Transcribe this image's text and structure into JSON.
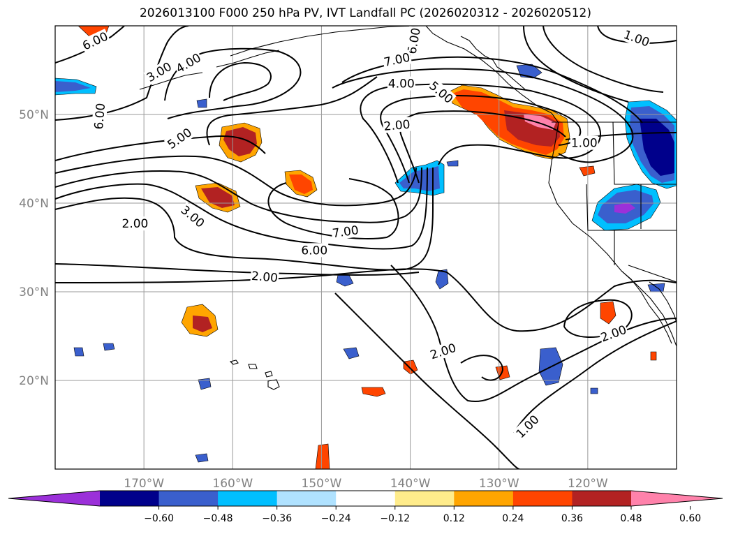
{
  "title": "2026013100 F000 250 hPa PV, IVT Landfall PC (2026020312 - 2026020512)",
  "map": {
    "lat_labels": [
      "50°N",
      "40°N",
      "30°N",
      "20°N"
    ],
    "lon_labels": [
      "170°W",
      "160°W",
      "150°W",
      "140°W",
      "130°W",
      "120°W"
    ],
    "lat_values": [
      50,
      40,
      30,
      20
    ],
    "lon_values": [
      -170,
      -160,
      -150,
      -140,
      -130,
      -120
    ],
    "extent": {
      "lon_min": -180,
      "lon_max": -110,
      "lat_min": 10,
      "lat_max": 60
    },
    "contour_labels": [
      {
        "text": "6.00",
        "lon": -175.5,
        "lat": 58.3,
        "angle": -25
      },
      {
        "text": "6.00",
        "lon": -139.6,
        "lat": 58.3,
        "angle": -80
      },
      {
        "text": "1.00",
        "lon": -114.5,
        "lat": 58.6,
        "angle": 20
      },
      {
        "text": "7.00",
        "lon": -141.5,
        "lat": 56.2,
        "angle": -12
      },
      {
        "text": "3.00",
        "lon": -168.3,
        "lat": 54.8,
        "angle": -30
      },
      {
        "text": "4.00",
        "lon": -165.0,
        "lat": 55.8,
        "angle": -30
      },
      {
        "text": "4.00",
        "lon": -141.0,
        "lat": 53.5,
        "angle": 0
      },
      {
        "text": "5.00",
        "lon": -136.5,
        "lat": 52.5,
        "angle": 40
      },
      {
        "text": "6.00",
        "lon": -175.0,
        "lat": 49.8,
        "angle": -85
      },
      {
        "text": "2.00",
        "lon": -141.5,
        "lat": 48.8,
        "angle": -5
      },
      {
        "text": "5.00",
        "lon": -166.0,
        "lat": 47.3,
        "angle": -35
      },
      {
        "text": "1.00",
        "lon": -120.4,
        "lat": 46.8,
        "angle": 0
      },
      {
        "text": "2.00",
        "lon": -171.0,
        "lat": 37.7,
        "angle": 0
      },
      {
        "text": "3.00",
        "lon": -164.5,
        "lat": 38.5,
        "angle": 40
      },
      {
        "text": "7.00",
        "lon": -147.3,
        "lat": 36.8,
        "angle": -8
      },
      {
        "text": "6.00",
        "lon": -150.8,
        "lat": 34.7,
        "angle": 0
      },
      {
        "text": "2.00",
        "lon": -156.4,
        "lat": 31.7,
        "angle": 5
      },
      {
        "text": "2.00",
        "lon": -117.1,
        "lat": 25.3,
        "angle": -20
      },
      {
        "text": "2.00",
        "lon": -136.3,
        "lat": 23.3,
        "angle": -18
      },
      {
        "text": "1.00",
        "lon": -126.8,
        "lat": 14.8,
        "angle": -45
      }
    ]
  },
  "colorbar": {
    "ticks": [
      "−0.60",
      "−0.48",
      "−0.36",
      "−0.24",
      "−0.12",
      "0.12",
      "0.24",
      "0.36",
      "0.48",
      "0.60"
    ],
    "tick_values": [
      -0.6,
      -0.48,
      -0.36,
      -0.24,
      -0.12,
      0.12,
      0.24,
      0.36,
      0.48,
      0.6
    ],
    "colors": [
      "#9b30d9",
      "#00008b",
      "#3a5fcd",
      "#00bfff",
      "#b0e2ff",
      "#ffffff",
      "#ffec8b",
      "#ffa500",
      "#ff4500",
      "#b22222",
      "#ff82ab"
    ]
  },
  "colors": {
    "grid": "#9a9a9a",
    "axis_label": "#808080",
    "contour": "#000000"
  }
}
